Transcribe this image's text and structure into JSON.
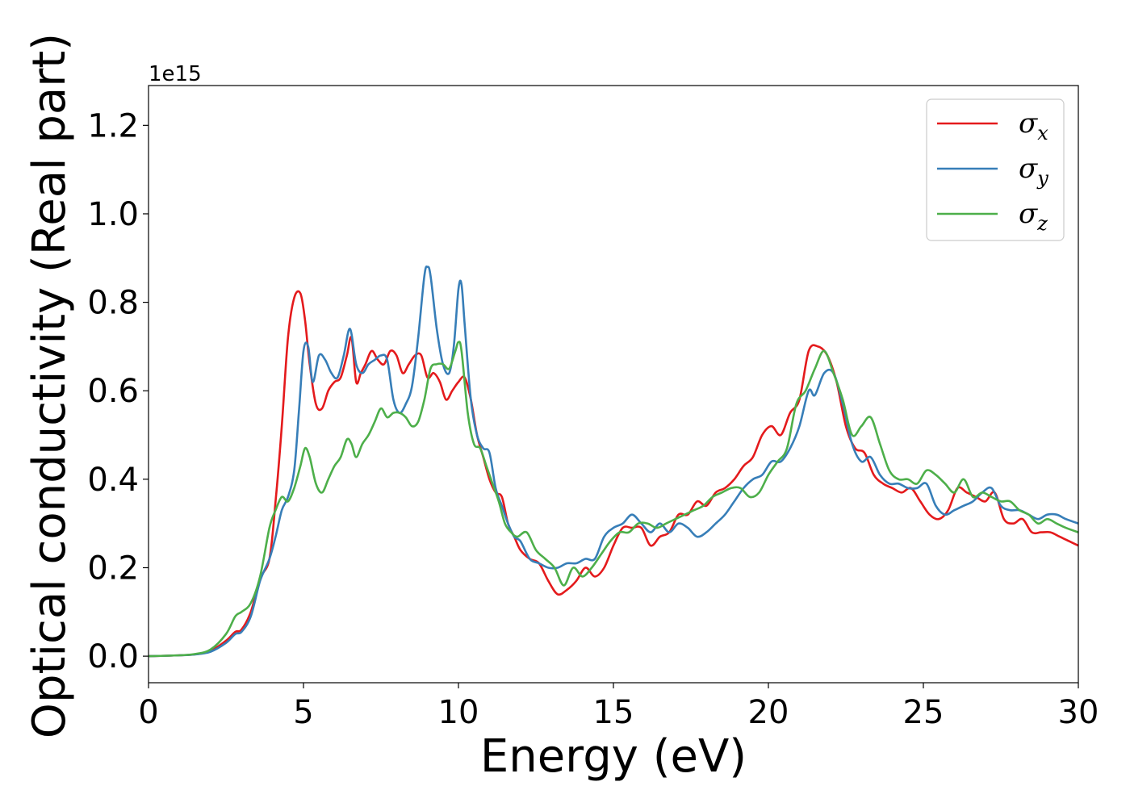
{
  "chart_data": {
    "type": "line",
    "xlabel": "Energy (eV)",
    "ylabel": "Optical conductivity (Real part)",
    "y_offset_label": "1e15",
    "xlim": [
      0,
      30
    ],
    "ylim": [
      -0.06,
      1.29
    ],
    "xticks": [
      0,
      5,
      10,
      15,
      20,
      25,
      30
    ],
    "yticks": [
      0.0,
      0.2,
      0.4,
      0.6,
      0.8,
      1.0,
      1.2
    ],
    "xtick_labels": [
      "0",
      "5",
      "10",
      "15",
      "20",
      "25",
      "30"
    ],
    "ytick_labels": [
      "0.0",
      "0.2",
      "0.4",
      "0.6",
      "0.8",
      "1.0",
      "1.2"
    ],
    "grid": false,
    "legend_position": "top-right",
    "series": [
      {
        "name": "σx",
        "symbol": "σ",
        "sub": "x",
        "color": "#e41a1c",
        "x": [
          0,
          1,
          1.5,
          2,
          2.5,
          2.8,
          3,
          3.3,
          3.6,
          3.9,
          4.1,
          4.3,
          4.5,
          4.7,
          4.9,
          5.05,
          5.2,
          5.4,
          5.6,
          5.8,
          6.0,
          6.2,
          6.4,
          6.55,
          6.7,
          6.85,
          7.0,
          7.2,
          7.4,
          7.6,
          7.8,
          8.0,
          8.2,
          8.4,
          8.6,
          8.8,
          9.0,
          9.2,
          9.4,
          9.6,
          9.8,
          10.0,
          10.2,
          10.4,
          10.6,
          10.8,
          11.0,
          11.2,
          11.4,
          11.6,
          11.8,
          12.0,
          12.3,
          12.6,
          12.9,
          13.2,
          13.5,
          13.8,
          14.1,
          14.4,
          14.7,
          15.0,
          15.3,
          15.6,
          15.9,
          16.2,
          16.5,
          16.8,
          17.1,
          17.4,
          17.7,
          18.0,
          18.3,
          18.6,
          18.9,
          19.2,
          19.5,
          19.8,
          20.1,
          20.4,
          20.7,
          21.0,
          21.3,
          21.6,
          21.9,
          22.2,
          22.5,
          22.8,
          23.1,
          23.4,
          23.7,
          24.0,
          24.3,
          24.6,
          24.9,
          25.2,
          25.5,
          25.8,
          26.1,
          26.4,
          26.7,
          27.0,
          27.3,
          27.6,
          27.9,
          28.2,
          28.5,
          28.8,
          29.1,
          29.4,
          29.7,
          30
        ],
        "y": [
          0,
          0.002,
          0.004,
          0.012,
          0.035,
          0.055,
          0.06,
          0.1,
          0.175,
          0.22,
          0.35,
          0.52,
          0.72,
          0.81,
          0.82,
          0.76,
          0.66,
          0.57,
          0.56,
          0.6,
          0.62,
          0.63,
          0.68,
          0.72,
          0.62,
          0.64,
          0.66,
          0.69,
          0.67,
          0.66,
          0.69,
          0.68,
          0.64,
          0.66,
          0.68,
          0.68,
          0.63,
          0.64,
          0.62,
          0.58,
          0.6,
          0.62,
          0.63,
          0.58,
          0.5,
          0.45,
          0.4,
          0.37,
          0.36,
          0.3,
          0.27,
          0.24,
          0.22,
          0.21,
          0.17,
          0.14,
          0.15,
          0.17,
          0.2,
          0.18,
          0.2,
          0.25,
          0.29,
          0.29,
          0.29,
          0.25,
          0.27,
          0.28,
          0.32,
          0.32,
          0.35,
          0.34,
          0.37,
          0.38,
          0.4,
          0.43,
          0.45,
          0.5,
          0.52,
          0.5,
          0.55,
          0.58,
          0.69,
          0.7,
          0.68,
          0.62,
          0.52,
          0.47,
          0.46,
          0.41,
          0.39,
          0.38,
          0.37,
          0.38,
          0.35,
          0.32,
          0.31,
          0.33,
          0.38,
          0.37,
          0.36,
          0.35,
          0.37,
          0.31,
          0.3,
          0.31,
          0.28,
          0.28,
          0.28,
          0.27,
          0.26,
          0.25
        ]
      },
      {
        "name": "σy",
        "symbol": "σ",
        "sub": "y",
        "color": "#377eb8",
        "x": [
          0,
          1,
          1.5,
          2,
          2.5,
          2.8,
          3,
          3.3,
          3.6,
          3.9,
          4.1,
          4.3,
          4.5,
          4.7,
          4.85,
          5.0,
          5.15,
          5.3,
          5.5,
          5.7,
          5.9,
          6.1,
          6.3,
          6.5,
          6.7,
          6.9,
          7.1,
          7.3,
          7.5,
          7.7,
          7.9,
          8.1,
          8.3,
          8.5,
          8.7,
          8.9,
          9.0,
          9.1,
          9.3,
          9.5,
          9.7,
          9.85,
          10.0,
          10.1,
          10.2,
          10.4,
          10.6,
          10.8,
          11.0,
          11.2,
          11.4,
          11.6,
          11.8,
          12.0,
          12.3,
          12.6,
          12.9,
          13.2,
          13.5,
          13.8,
          14.1,
          14.4,
          14.7,
          15.0,
          15.3,
          15.6,
          15.9,
          16.2,
          16.5,
          16.8,
          17.1,
          17.4,
          17.7,
          18.0,
          18.3,
          18.6,
          18.9,
          19.2,
          19.5,
          19.8,
          20.1,
          20.4,
          20.7,
          21.0,
          21.3,
          21.5,
          21.8,
          22.1,
          22.4,
          22.7,
          23.0,
          23.3,
          23.6,
          23.9,
          24.2,
          24.5,
          24.8,
          25.1,
          25.4,
          25.7,
          26.0,
          26.3,
          26.6,
          26.9,
          27.2,
          27.5,
          27.8,
          28.1,
          28.4,
          28.7,
          29.0,
          29.3,
          29.6,
          30
        ],
        "y": [
          0,
          0.002,
          0.004,
          0.01,
          0.03,
          0.05,
          0.055,
          0.09,
          0.17,
          0.22,
          0.27,
          0.33,
          0.36,
          0.42,
          0.55,
          0.69,
          0.7,
          0.62,
          0.68,
          0.67,
          0.64,
          0.63,
          0.68,
          0.74,
          0.66,
          0.64,
          0.66,
          0.67,
          0.68,
          0.67,
          0.58,
          0.55,
          0.57,
          0.61,
          0.72,
          0.86,
          0.88,
          0.86,
          0.74,
          0.66,
          0.64,
          0.7,
          0.83,
          0.84,
          0.75,
          0.58,
          0.5,
          0.47,
          0.46,
          0.38,
          0.34,
          0.3,
          0.27,
          0.26,
          0.22,
          0.21,
          0.2,
          0.2,
          0.21,
          0.21,
          0.22,
          0.22,
          0.27,
          0.29,
          0.3,
          0.32,
          0.3,
          0.28,
          0.3,
          0.28,
          0.3,
          0.29,
          0.27,
          0.28,
          0.3,
          0.32,
          0.35,
          0.38,
          0.4,
          0.41,
          0.44,
          0.44,
          0.47,
          0.52,
          0.6,
          0.59,
          0.64,
          0.64,
          0.57,
          0.48,
          0.44,
          0.45,
          0.41,
          0.39,
          0.39,
          0.38,
          0.38,
          0.39,
          0.34,
          0.32,
          0.33,
          0.34,
          0.35,
          0.37,
          0.38,
          0.34,
          0.33,
          0.33,
          0.32,
          0.31,
          0.32,
          0.32,
          0.31,
          0.3
        ]
      },
      {
        "name": "σz",
        "symbol": "σ",
        "sub": "z",
        "color": "#4daf4a",
        "x": [
          0,
          1,
          1.5,
          2,
          2.5,
          2.8,
          3,
          3.3,
          3.6,
          3.9,
          4.1,
          4.3,
          4.5,
          4.7,
          4.9,
          5.05,
          5.2,
          5.4,
          5.6,
          5.8,
          6.0,
          6.2,
          6.4,
          6.55,
          6.7,
          6.9,
          7.1,
          7.3,
          7.5,
          7.7,
          7.9,
          8.1,
          8.3,
          8.5,
          8.7,
          8.9,
          9.1,
          9.3,
          9.5,
          9.7,
          9.9,
          10.0,
          10.1,
          10.3,
          10.5,
          10.7,
          10.9,
          11.1,
          11.3,
          11.5,
          11.7,
          11.9,
          12.2,
          12.5,
          12.8,
          13.1,
          13.4,
          13.7,
          14.0,
          14.3,
          14.6,
          14.9,
          15.2,
          15.5,
          15.8,
          16.1,
          16.4,
          16.7,
          17.0,
          17.3,
          17.6,
          17.9,
          18.2,
          18.5,
          18.8,
          19.1,
          19.4,
          19.7,
          20.0,
          20.3,
          20.6,
          20.9,
          21.2,
          21.5,
          21.8,
          22.1,
          22.4,
          22.7,
          23.0,
          23.3,
          23.6,
          23.9,
          24.2,
          24.5,
          24.8,
          25.1,
          25.4,
          25.7,
          26.0,
          26.3,
          26.6,
          26.9,
          27.2,
          27.5,
          27.8,
          28.1,
          28.4,
          28.7,
          29.0,
          29.3,
          29.6,
          30
        ],
        "y": [
          0,
          0.002,
          0.005,
          0.015,
          0.05,
          0.09,
          0.1,
          0.12,
          0.18,
          0.29,
          0.33,
          0.36,
          0.35,
          0.38,
          0.43,
          0.47,
          0.45,
          0.39,
          0.37,
          0.4,
          0.43,
          0.45,
          0.49,
          0.48,
          0.45,
          0.48,
          0.5,
          0.53,
          0.56,
          0.54,
          0.55,
          0.55,
          0.54,
          0.52,
          0.53,
          0.58,
          0.65,
          0.66,
          0.66,
          0.65,
          0.69,
          0.71,
          0.69,
          0.55,
          0.48,
          0.47,
          0.43,
          0.39,
          0.35,
          0.3,
          0.28,
          0.27,
          0.28,
          0.24,
          0.22,
          0.2,
          0.16,
          0.2,
          0.18,
          0.2,
          0.23,
          0.26,
          0.28,
          0.28,
          0.3,
          0.3,
          0.29,
          0.3,
          0.31,
          0.32,
          0.33,
          0.34,
          0.36,
          0.37,
          0.38,
          0.38,
          0.36,
          0.37,
          0.41,
          0.44,
          0.47,
          0.57,
          0.6,
          0.65,
          0.69,
          0.64,
          0.58,
          0.5,
          0.52,
          0.54,
          0.48,
          0.42,
          0.4,
          0.4,
          0.39,
          0.42,
          0.41,
          0.39,
          0.37,
          0.4,
          0.36,
          0.37,
          0.36,
          0.35,
          0.35,
          0.33,
          0.32,
          0.3,
          0.31,
          0.3,
          0.29,
          0.28
        ]
      }
    ]
  }
}
